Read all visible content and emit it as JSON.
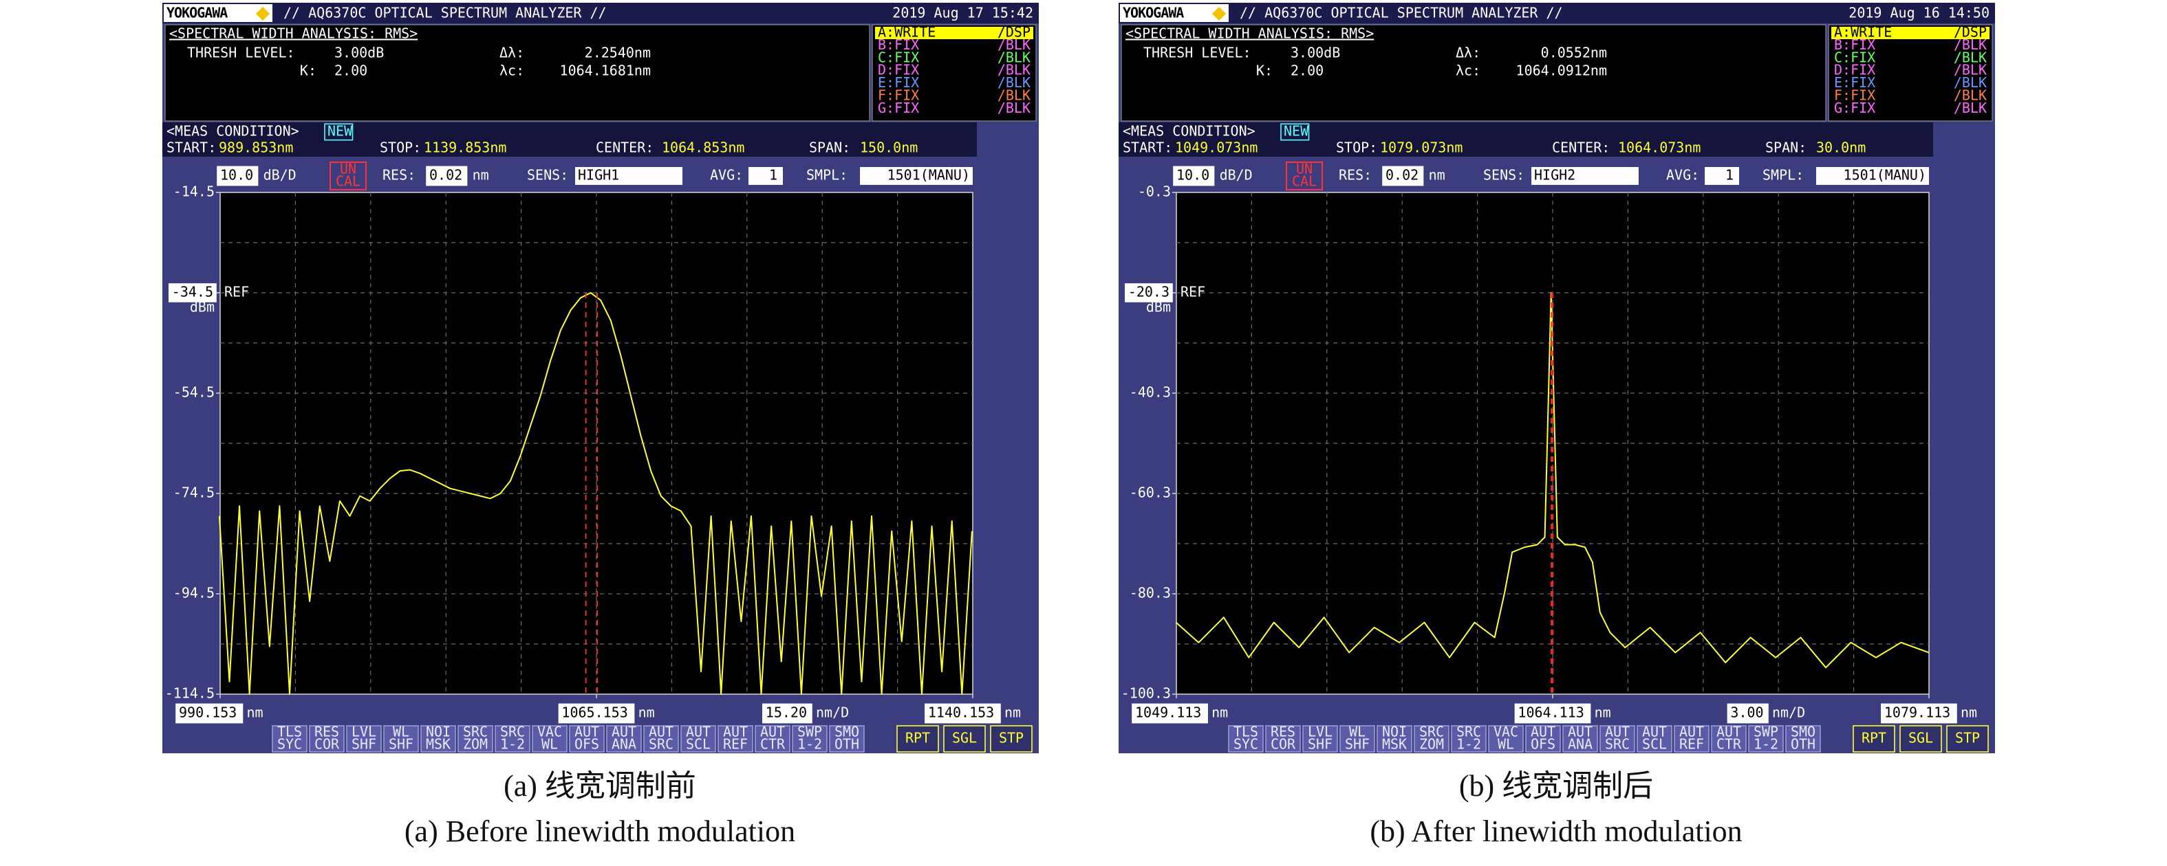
{
  "screens": [
    {
      "brand": "YOKOGAWA",
      "title": "// AQ6370C OPTICAL SPECTRUM ANALYZER //",
      "date": "2019 Aug 17 15:42",
      "analysis": {
        "heading": "<SPECTRAL WIDTH ANALYSIS: RMS>",
        "thresh_label": "THRESH LEVEL:",
        "thresh": "3.00dB",
        "k_label": "K:",
        "k": "2.00",
        "dl_label": "Δλ:",
        "lc_label": "λc:"
      },
      "traces": [
        {
          "id": "A:WRITE",
          "mode": "/DSP",
          "color": "#ffff00",
          "highlight": true
        },
        {
          "id": "B:FIX",
          "mode": "/BLK",
          "color": "#ff66ff",
          "highlight": false
        },
        {
          "id": "C:FIX",
          "mode": "/BLK",
          "color": "#66ff66",
          "highlight": false
        },
        {
          "id": "D:FIX",
          "mode": "/BLK",
          "color": "#ff66ff",
          "highlight": false
        },
        {
          "id": "E:FIX",
          "mode": "/BLK",
          "color": "#6699ff",
          "highlight": false
        },
        {
          "id": "F:FIX",
          "mode": "/BLK",
          "color": "#ff8040",
          "highlight": false
        },
        {
          "id": "G:FIX",
          "mode": "/BLK",
          "color": "#ff66ff",
          "highlight": false
        }
      ],
      "meas": {
        "heading": "<MEAS CONDITION>",
        "new": "NEW",
        "start_label": "START:",
        "start": "989.853nm",
        "stop_label": "STOP:",
        "stop": "1139.853nm",
        "center_label": "CENTER:",
        "center": "1064.853nm",
        "span_label": "SPAN:",
        "span": "150.0nm"
      },
      "status": {
        "scale": "10.0",
        "scale_unit": "dB/D",
        "uncal": [
          "UN",
          "CAL"
        ],
        "res_label": "RES:",
        "res": "0.02",
        "res_unit": "nm",
        "sens_label": "SENS:",
        "sens": "HIGH1",
        "avg_label": "AVG:",
        "avg": "1",
        "smpl_label": "SMPL:",
        "smpl": "1501(MANU)"
      },
      "ref_label": "REF",
      "y_unit": "dBm",
      "x_unit": "nm",
      "div": "15.20",
      "div_unit": "nm/D",
      "softkeys": [
        [
          "TLS",
          "SYC"
        ],
        [
          "RES",
          "COR"
        ],
        [
          "LVL",
          "SHF"
        ],
        [
          "WL",
          "SHF"
        ],
        [
          "NOI",
          "MSK"
        ],
        [
          "SRC",
          "ZOM"
        ],
        [
          "SRC",
          "1-2"
        ],
        [
          "VAC",
          "WL"
        ],
        [
          "AUT",
          "OFS"
        ],
        [
          "AUT",
          "ANA"
        ],
        [
          "AUT",
          "SRC"
        ],
        [
          "AUT",
          "SCL"
        ],
        [
          "AUT",
          "REF"
        ],
        [
          "AUT",
          "CTR"
        ],
        [
          "SWP",
          "1-2"
        ],
        [
          "SMO",
          "OTH"
        ],
        [
          "RPT"
        ],
        [
          "SGL"
        ],
        [
          "STP"
        ]
      ]
    },
    {
      "brand": "YOKOGAWA",
      "title": "// AQ6370C OPTICAL SPECTRUM ANALYZER //",
      "date": "2019 Aug 16 14:50",
      "analysis": {
        "heading": "<SPECTRAL WIDTH ANALYSIS: RMS>",
        "thresh_label": "THRESH LEVEL:",
        "thresh": "3.00dB",
        "k_label": "K:",
        "k": "2.00",
        "dl_label": "Δλ:",
        "lc_label": "λc:"
      },
      "traces": [
        {
          "id": "A:WRITE",
          "mode": "/DSP",
          "color": "#ffff00",
          "highlight": true
        },
        {
          "id": "B:FIX",
          "mode": "/BLK",
          "color": "#ff66ff",
          "highlight": false
        },
        {
          "id": "C:FIX",
          "mode": "/BLK",
          "color": "#66ff66",
          "highlight": false
        },
        {
          "id": "D:FIX",
          "mode": "/BLK",
          "color": "#ff66ff",
          "highlight": false
        },
        {
          "id": "E:FIX",
          "mode": "/BLK",
          "color": "#6699ff",
          "highlight": false
        },
        {
          "id": "F:FIX",
          "mode": "/BLK",
          "color": "#ff8040",
          "highlight": false
        },
        {
          "id": "G:FIX",
          "mode": "/BLK",
          "color": "#ff66ff",
          "highlight": false
        }
      ],
      "meas": {
        "heading": "<MEAS CONDITION>",
        "new": "NEW",
        "start_label": "START:",
        "start": "1049.073nm",
        "stop_label": "STOP:",
        "stop": "1079.073nm",
        "center_label": "CENTER:",
        "center": "1064.073nm",
        "span_label": "SPAN:",
        "span": "30.0nm"
      },
      "status": {
        "scale": "10.0",
        "scale_unit": "dB/D",
        "uncal": [
          "UN",
          "CAL"
        ],
        "res_label": "RES:",
        "res": "0.02",
        "res_unit": "nm",
        "sens_label": "SENS:",
        "sens": "HIGH2",
        "avg_label": "AVG:",
        "avg": "1",
        "smpl_label": "SMPL:",
        "smpl": "1501(MANU)"
      },
      "ref_label": "REF",
      "y_unit": "dBm",
      "x_unit": "nm",
      "div": "3.00",
      "div_unit": "nm/D",
      "softkeys": [
        [
          "TLS",
          "SYC"
        ],
        [
          "RES",
          "COR"
        ],
        [
          "LVL",
          "SHF"
        ],
        [
          "WL",
          "SHF"
        ],
        [
          "NOI",
          "MSK"
        ],
        [
          "SRC",
          "ZOM"
        ],
        [
          "SRC",
          "1-2"
        ],
        [
          "VAC",
          "WL"
        ],
        [
          "AUT",
          "OFS"
        ],
        [
          "AUT",
          "ANA"
        ],
        [
          "AUT",
          "SRC"
        ],
        [
          "AUT",
          "SCL"
        ],
        [
          "AUT",
          "REF"
        ],
        [
          "AUT",
          "CTR"
        ],
        [
          "SWP",
          "1-2"
        ],
        [
          "SMO",
          "OTH"
        ],
        [
          "RPT"
        ],
        [
          "SGL"
        ],
        [
          "STP"
        ]
      ]
    }
  ],
  "chart_data": [
    {
      "type": "line",
      "x": [
        990,
        992,
        994,
        996,
        998,
        1000,
        1002,
        1004,
        1006,
        1008,
        1010,
        1012,
        1014,
        1016,
        1018,
        1020,
        1022,
        1024,
        1026,
        1028,
        1030,
        1032,
        1034,
        1036,
        1038,
        1040,
        1042,
        1044,
        1046,
        1048,
        1050,
        1052,
        1054,
        1056,
        1058,
        1060,
        1062,
        1064,
        1066,
        1068,
        1070,
        1072,
        1074,
        1076,
        1078,
        1080,
        1082,
        1084,
        1086,
        1088,
        1090,
        1092,
        1094,
        1096,
        1098,
        1100,
        1102,
        1104,
        1106,
        1108,
        1110,
        1112,
        1114,
        1116,
        1118,
        1120,
        1122,
        1124,
        1126,
        1128,
        1130,
        1132,
        1134,
        1136,
        1138,
        1140
      ],
      "series": [
        {
          "color": "#ffff33",
          "values": [
            -79,
            -112,
            -77,
            -114.5,
            -78,
            -105,
            -77,
            -114.5,
            -78,
            -96,
            -77,
            -88,
            -76,
            -79,
            -75,
            -76,
            -73.5,
            -71.5,
            -70,
            -69.8,
            -70.5,
            -71.5,
            -72.5,
            -73.5,
            -74,
            -74.5,
            -75,
            -75.5,
            -74.5,
            -72,
            -67,
            -61,
            -55,
            -48,
            -42,
            -38,
            -35.5,
            -34.5,
            -36,
            -40,
            -47,
            -55,
            -63,
            -70,
            -75,
            -77,
            -78,
            -81,
            -110,
            -79,
            -114.5,
            -80,
            -100,
            -79,
            -114.5,
            -81,
            -108,
            -80,
            -114.5,
            -79,
            -95,
            -81,
            -114.5,
            -80,
            -112,
            -79,
            -114.5,
            -82,
            -104,
            -80,
            -114.5,
            -81,
            -110,
            -80,
            -114.5,
            -82
          ]
        }
      ],
      "xlim": [
        990.153,
        1140.153
      ],
      "xticks": [
        990.153,
        1065.153,
        1140.153
      ],
      "ylim": [
        -114.5,
        -14.5
      ],
      "yticks": [
        -14.5,
        -54.5,
        -74.5,
        -94.5,
        -114.5
      ],
      "ref_level": -34.5,
      "grid": true,
      "delta_lambda": {
        "value": 2.254,
        "label": "2.2540nm"
      },
      "lambda_c": {
        "value": 1064.1681,
        "label": "1064.1681nm"
      }
    },
    {
      "type": "line",
      "x": [
        1049.1,
        1050,
        1051,
        1052,
        1053,
        1054,
        1055,
        1056,
        1057,
        1058,
        1059,
        1060,
        1061,
        1061.8,
        1062.2,
        1062.5,
        1063,
        1063.5,
        1063.8,
        1063.95,
        1064.05,
        1064.15,
        1064.3,
        1064.6,
        1065,
        1065.4,
        1065.7,
        1066,
        1066.4,
        1067,
        1068,
        1069,
        1070,
        1071,
        1072,
        1073,
        1074,
        1075,
        1076,
        1077,
        1078,
        1079.1
      ],
      "series": [
        {
          "color": "#ffff33",
          "values": [
            -86,
            -90,
            -85,
            -93,
            -86,
            -91,
            -85,
            -92,
            -87,
            -90,
            -86,
            -93,
            -86,
            -89,
            -80,
            -72,
            -71,
            -70.5,
            -69,
            -40,
            -20.3,
            -40,
            -69,
            -70.5,
            -70.5,
            -71,
            -74,
            -84,
            -88,
            -91,
            -87,
            -92,
            -88,
            -94,
            -89,
            -93,
            -89,
            -95,
            -90,
            -93,
            -90,
            -92
          ]
        }
      ],
      "xlim": [
        1049.113,
        1079.113
      ],
      "xticks": [
        1049.113,
        1064.113,
        1079.113
      ],
      "ylim": [
        -100.3,
        -0.3
      ],
      "yticks": [
        -0.3,
        -40.3,
        -60.3,
        -80.3,
        -100.3
      ],
      "ref_level": -20.3,
      "grid": true,
      "delta_lambda": {
        "value": 0.0552,
        "label": "0.0552nm"
      },
      "lambda_c": {
        "value": 1064.0912,
        "label": "1064.0912nm"
      }
    }
  ],
  "captions": [
    {
      "zh": "(a) 线宽调制前",
      "en": "(a) Before linewidth modulation"
    },
    {
      "zh": "(b) 线宽调制后",
      "en": "(b) After linewidth modulation"
    }
  ]
}
